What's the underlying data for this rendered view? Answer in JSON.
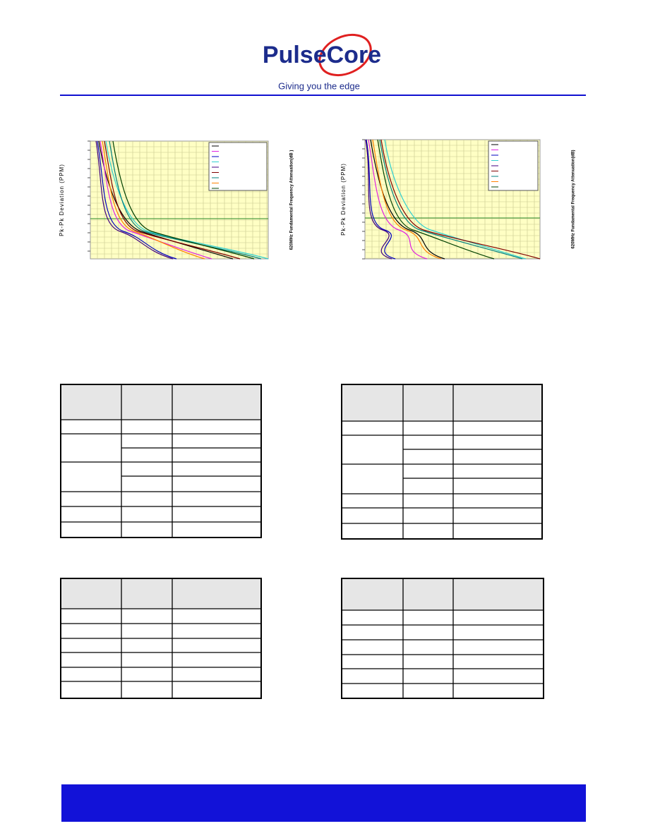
{
  "header": {
    "logo": "PulseCore",
    "tagline": "Giving you the edge"
  },
  "figures": [
    {
      "y_label": "Pk-Pk Deviation (PPM)",
      "y2_label": "620MHz  Fundamental Frequency Attenuation(dB )"
    },
    {
      "y_label": "Pk-Pk Deviation (PPM)",
      "y2_label": "620MHz  Fundamental Frequency Attenuation(dB)"
    }
  ]
}
